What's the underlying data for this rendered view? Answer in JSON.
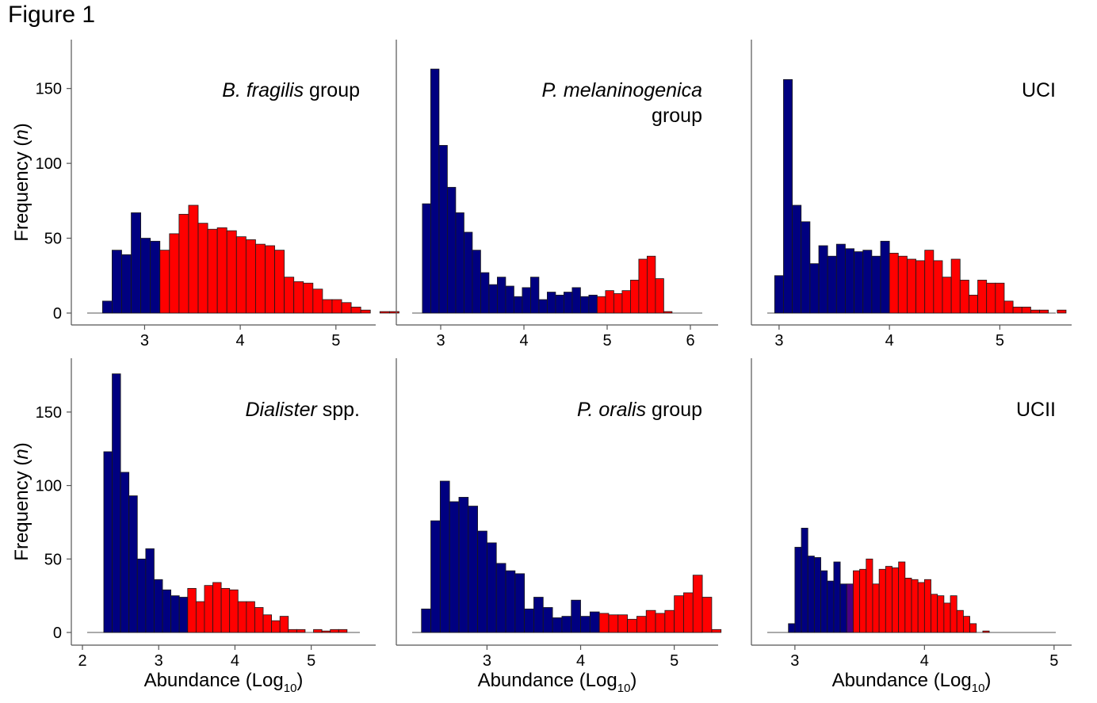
{
  "figure": {
    "title": "Figure 1"
  },
  "axis_titles": {
    "ylabel_main": "Frequency (",
    "ylabel_italic": "n",
    "ylabel_tail": ")",
    "xlabel_main": "Abundance (Log",
    "xlabel_sub": "10",
    "xlabel_tail": ")"
  },
  "colors": {
    "low": "#000080",
    "high": "#ff0000",
    "mid": "#4b0082"
  },
  "chart_data": [
    {
      "type": "bar",
      "label_italic": "B. fragilis",
      "label_rest": " group",
      "label_line2": "",
      "xticks": [
        3,
        4,
        5
      ],
      "yticks": [
        0,
        50,
        100,
        150
      ],
      "xlim": [
        2.35,
        5.3
      ],
      "ylim": [
        0,
        180
      ],
      "x_start": 2.56,
      "bin_width": 0.1,
      "values": [
        8,
        42,
        39,
        67,
        50,
        48,
        42,
        53,
        66,
        72,
        60,
        56,
        57,
        55,
        51,
        49,
        46,
        45,
        42,
        24,
        21,
        20,
        16,
        9,
        9,
        7,
        4,
        2,
        0,
        1,
        1
      ],
      "split_index": 6
    },
    {
      "type": "bar",
      "label_italic": "P. melaninogenica",
      "label_rest": "",
      "label_line2": "group",
      "xticks": [
        3,
        4,
        5,
        6
      ],
      "yticks": [],
      "xlim": [
        2.6,
        6.2
      ],
      "ylim": [
        0,
        180
      ],
      "x_start": 2.78,
      "bin_width": 0.1,
      "values": [
        73,
        163,
        112,
        84,
        67,
        54,
        42,
        27,
        19,
        24,
        18,
        11,
        17,
        24,
        9,
        14,
        12,
        14,
        17,
        11,
        12,
        11,
        15,
        13,
        15,
        22,
        36,
        38,
        23,
        1
      ],
      "split_index": 21
    },
    {
      "type": "bar",
      "label_italic": "",
      "label_rest": "UCI",
      "label_line2": "",
      "xticks": [
        3,
        4,
        5
      ],
      "yticks": [],
      "xlim": [
        2.85,
        5.55
      ],
      "ylim": [
        0,
        180
      ],
      "x_start": 2.96,
      "bin_width": 0.08,
      "values": [
        25,
        156,
        72,
        61,
        33,
        45,
        38,
        46,
        43,
        41,
        42,
        38,
        48,
        40,
        38,
        36,
        35,
        42,
        35,
        24,
        36,
        22,
        12,
        22,
        20,
        20,
        8,
        4,
        4,
        2,
        2,
        0,
        2
      ],
      "split_index": 13
    },
    {
      "type": "bar",
      "label_italic": "Dialister",
      "label_rest": " spp.",
      "label_line2": "",
      "xticks": [
        2,
        3,
        4,
        5
      ],
      "yticks": [
        0,
        50,
        100,
        150
      ],
      "xlim": [
        2,
        5.7
      ],
      "ylim": [
        0,
        185
      ],
      "x_start": 2.28,
      "bin_width": 0.11,
      "values": [
        123,
        176,
        109,
        93,
        50,
        57,
        36,
        29,
        25,
        24,
        30,
        21,
        32,
        34,
        30,
        29,
        21,
        21,
        17,
        12,
        8,
        11,
        2,
        2,
        0,
        2,
        1,
        2,
        2
      ],
      "split_index": 10
    },
    {
      "type": "bar",
      "label_italic": "P. oralis",
      "label_rest": " group",
      "label_line2": "",
      "xticks": [
        3,
        4,
        5
      ],
      "yticks": [],
      "xlim": [
        2.15,
        5.35
      ],
      "ylim": [
        0,
        185
      ],
      "x_start": 2.3,
      "bin_width": 0.1,
      "values": [
        16,
        76,
        103,
        89,
        92,
        86,
        69,
        61,
        47,
        42,
        40,
        16,
        24,
        17,
        10,
        11,
        22,
        11,
        14,
        13,
        12,
        12,
        9,
        11,
        15,
        13,
        15,
        25,
        27,
        39,
        24,
        2
      ],
      "split_index": 19
    },
    {
      "type": "bar",
      "label_italic": "",
      "label_rest": "UCII",
      "label_line2": "",
      "xticks": [
        3,
        4,
        5
      ],
      "yticks": [],
      "xlim": [
        2.75,
        5.05
      ],
      "ylim": [
        0,
        185
      ],
      "x_start": 2.95,
      "bin_width": 0.05,
      "values": [
        6,
        58,
        71,
        52,
        51,
        42,
        35,
        48,
        33,
        33,
        42,
        43,
        50,
        33,
        43,
        45,
        44,
        48,
        37,
        36,
        34,
        36,
        26,
        25,
        20,
        25,
        15,
        11,
        6,
        0,
        1
      ],
      "split_index": 9,
      "mid_index": 9
    }
  ]
}
